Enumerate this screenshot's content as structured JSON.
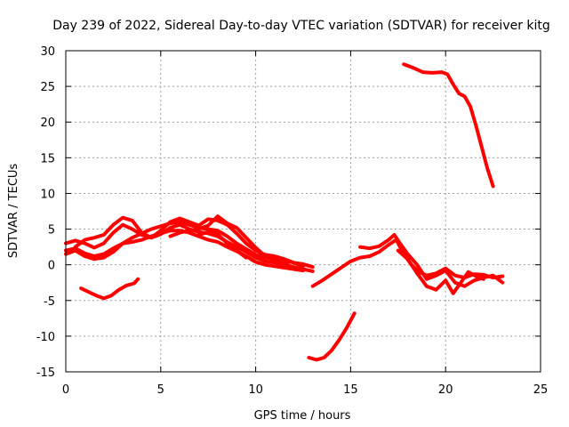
{
  "chart_data": {
    "type": "line",
    "title": "Day 239 of 2022, Sidereal Day-to-day VTEC variation (SDTVAR) for receiver kitg",
    "xlabel": "GPS time / hours",
    "ylabel": "SDTVAR / TECUs",
    "xlim": [
      0,
      25
    ],
    "ylim": [
      -15,
      30
    ],
    "xticks": [
      0,
      5,
      10,
      15,
      20,
      25
    ],
    "yticks": [
      -15,
      -10,
      -5,
      0,
      5,
      10,
      15,
      20,
      25,
      30
    ],
    "grid": true,
    "color": "#ff0000",
    "series": [
      {
        "name": "arc-1",
        "points": [
          [
            0.0,
            3.0
          ],
          [
            0.5,
            3.4
          ],
          [
            1.0,
            3.0
          ],
          [
            1.5,
            2.4
          ],
          [
            2.0,
            3.0
          ],
          [
            2.5,
            4.5
          ],
          [
            3.0,
            5.6
          ],
          [
            3.5,
            5.0
          ],
          [
            4.0,
            4.2
          ],
          [
            4.5,
            3.8
          ],
          [
            5.0,
            4.3
          ],
          [
            5.5,
            5.2
          ],
          [
            6.0,
            5.6
          ],
          [
            6.5,
            5.0
          ],
          [
            7.0,
            4.6
          ],
          [
            7.5,
            4.4
          ],
          [
            8.0,
            4.0
          ],
          [
            8.5,
            3.2
          ],
          [
            9.0,
            2.5
          ],
          [
            9.5,
            1.8
          ],
          [
            10.0,
            1.0
          ],
          [
            10.5,
            0.5
          ],
          [
            11.0,
            0.3
          ],
          [
            11.5,
            0.0
          ],
          [
            12.0,
            -0.3
          ],
          [
            12.5,
            -0.6
          ],
          [
            13.0,
            -0.9
          ]
        ]
      },
      {
        "name": "arc-2",
        "points": [
          [
            0.0,
            2.0
          ],
          [
            0.5,
            2.3
          ],
          [
            1.0,
            1.6
          ],
          [
            1.5,
            1.2
          ],
          [
            2.0,
            1.5
          ],
          [
            2.5,
            2.3
          ],
          [
            3.0,
            3.0
          ],
          [
            3.5,
            3.2
          ],
          [
            4.0,
            3.5
          ],
          [
            4.5,
            4.0
          ],
          [
            5.0,
            4.4
          ],
          [
            5.5,
            4.8
          ],
          [
            6.0,
            4.8
          ],
          [
            6.5,
            4.5
          ],
          [
            7.0,
            4.0
          ],
          [
            7.5,
            3.5
          ],
          [
            8.0,
            3.2
          ],
          [
            8.5,
            2.5
          ],
          [
            9.0,
            1.9
          ],
          [
            9.5,
            1.2
          ],
          [
            10.0,
            0.4
          ],
          [
            10.5,
            0.0
          ],
          [
            11.0,
            -0.2
          ],
          [
            11.5,
            -0.4
          ],
          [
            12.0,
            -0.6
          ],
          [
            12.5,
            -0.8
          ]
        ]
      },
      {
        "name": "arc-3",
        "points": [
          [
            0.0,
            1.5
          ],
          [
            0.5,
            2.0
          ],
          [
            1.0,
            1.2
          ],
          [
            1.5,
            0.8
          ],
          [
            2.0,
            1.0
          ],
          [
            2.5,
            1.8
          ],
          [
            3.0,
            3.0
          ],
          [
            3.5,
            3.8
          ],
          [
            4.0,
            4.4
          ],
          [
            4.5,
            5.0
          ],
          [
            5.0,
            5.4
          ],
          [
            5.5,
            5.8
          ],
          [
            6.0,
            6.0
          ],
          [
            6.5,
            5.6
          ],
          [
            7.0,
            5.2
          ],
          [
            7.5,
            5.0
          ],
          [
            8.0,
            4.8
          ],
          [
            8.5,
            4.0
          ],
          [
            9.0,
            3.0
          ],
          [
            9.5,
            2.2
          ],
          [
            10.0,
            1.4
          ],
          [
            10.5,
            1.0
          ],
          [
            11.0,
            0.8
          ],
          [
            11.5,
            0.6
          ],
          [
            12.0,
            0.3
          ],
          [
            12.5,
            0.1
          ],
          [
            13.0,
            -0.3
          ]
        ]
      },
      {
        "name": "arc-4",
        "points": [
          [
            0.5,
            2.5
          ],
          [
            1.0,
            3.5
          ],
          [
            1.5,
            3.8
          ],
          [
            2.0,
            4.2
          ],
          [
            2.5,
            5.6
          ],
          [
            3.0,
            6.6
          ],
          [
            3.5,
            6.2
          ],
          [
            4.0,
            4.5
          ],
          [
            4.5,
            3.8
          ],
          [
            5.0,
            4.8
          ],
          [
            5.5,
            6.0
          ],
          [
            6.0,
            6.5
          ],
          [
            6.5,
            6.0
          ],
          [
            7.0,
            5.5
          ],
          [
            7.5,
            6.4
          ],
          [
            8.0,
            6.2
          ],
          [
            8.5,
            5.6
          ],
          [
            9.0,
            4.4
          ],
          [
            9.5,
            3.0
          ],
          [
            10.0,
            2.0
          ],
          [
            10.5,
            1.4
          ],
          [
            11.0,
            1.2
          ],
          [
            11.5,
            0.8
          ],
          [
            12.0,
            0.3
          ],
          [
            12.5,
            -0.2
          ]
        ]
      },
      {
        "name": "arc-5",
        "points": [
          [
            5.5,
            4.0
          ],
          [
            6.0,
            4.5
          ],
          [
            6.5,
            4.8
          ],
          [
            7.0,
            5.0
          ],
          [
            7.5,
            5.5
          ],
          [
            8.0,
            6.8
          ],
          [
            8.5,
            5.8
          ],
          [
            9.0,
            5.2
          ],
          [
            9.5,
            3.8
          ],
          [
            10.0,
            2.4
          ],
          [
            10.5,
            1.2
          ],
          [
            11.0,
            0.6
          ],
          [
            11.5,
            0.2
          ],
          [
            12.0,
            -0.4
          ]
        ]
      },
      {
        "name": "arc-6",
        "points": [
          [
            7.0,
            4.2
          ],
          [
            7.5,
            4.6
          ],
          [
            8.0,
            4.3
          ],
          [
            8.5,
            3.0
          ],
          [
            9.0,
            2.0
          ],
          [
            9.5,
            1.0
          ]
        ]
      },
      {
        "name": "arc-7",
        "points": [
          [
            0.8,
            -3.3
          ],
          [
            1.2,
            -3.8
          ],
          [
            1.6,
            -4.3
          ],
          [
            2.0,
            -4.7
          ],
          [
            2.4,
            -4.3
          ],
          [
            2.8,
            -3.5
          ],
          [
            3.2,
            -2.9
          ],
          [
            3.6,
            -2.6
          ],
          [
            3.8,
            -2.0
          ]
        ]
      },
      {
        "name": "arc-8",
        "points": [
          [
            12.8,
            -13.0
          ],
          [
            13.2,
            -13.3
          ],
          [
            13.6,
            -13.0
          ],
          [
            14.0,
            -12.0
          ],
          [
            14.4,
            -10.5
          ],
          [
            14.8,
            -8.8
          ],
          [
            15.2,
            -6.8
          ]
        ]
      },
      {
        "name": "arc-9",
        "points": [
          [
            13.0,
            -3.0
          ],
          [
            13.5,
            -2.2
          ],
          [
            14.0,
            -1.3
          ],
          [
            14.5,
            -0.4
          ],
          [
            15.0,
            0.5
          ],
          [
            15.5,
            1.0
          ],
          [
            16.0,
            1.2
          ],
          [
            16.5,
            1.8
          ],
          [
            17.0,
            2.8
          ],
          [
            17.4,
            3.5
          ],
          [
            17.8,
            1.5
          ],
          [
            18.2,
            0.0
          ],
          [
            18.6,
            -1.0
          ],
          [
            19.0,
            -1.5
          ],
          [
            19.5,
            -1.2
          ],
          [
            20.0,
            -0.5
          ],
          [
            20.5,
            -1.5
          ],
          [
            21.0,
            -1.8
          ],
          [
            21.5,
            -1.3
          ],
          [
            22.0,
            -1.4
          ],
          [
            22.5,
            -1.8
          ],
          [
            23.0,
            -1.6
          ]
        ]
      },
      {
        "name": "arc-10",
        "points": [
          [
            15.5,
            2.5
          ],
          [
            16.0,
            2.3
          ],
          [
            16.5,
            2.6
          ],
          [
            17.0,
            3.5
          ],
          [
            17.3,
            4.2
          ],
          [
            17.6,
            3.0
          ],
          [
            18.0,
            1.5
          ],
          [
            18.5,
            0.0
          ],
          [
            19.0,
            -2.0
          ],
          [
            19.5,
            -1.5
          ],
          [
            20.0,
            -0.8
          ],
          [
            20.5,
            -2.5
          ],
          [
            21.0,
            -3.0
          ],
          [
            21.5,
            -2.2
          ],
          [
            22.0,
            -1.8
          ],
          [
            22.5,
            -1.5
          ],
          [
            23.0,
            -2.5
          ]
        ]
      },
      {
        "name": "arc-11",
        "points": [
          [
            17.5,
            2.0
          ],
          [
            18.0,
            0.8
          ],
          [
            18.5,
            -1.2
          ],
          [
            19.0,
            -3.0
          ],
          [
            19.5,
            -3.5
          ],
          [
            20.0,
            -2.2
          ],
          [
            20.4,
            -4.0
          ],
          [
            20.8,
            -2.5
          ],
          [
            21.2,
            -1.0
          ],
          [
            21.6,
            -1.6
          ],
          [
            22.0,
            -2.0
          ]
        ]
      },
      {
        "name": "arc-12",
        "points": [
          [
            17.8,
            28.1
          ],
          [
            18.3,
            27.6
          ],
          [
            18.8,
            27.0
          ],
          [
            19.3,
            26.9
          ],
          [
            19.8,
            27.0
          ],
          [
            20.1,
            26.7
          ],
          [
            20.4,
            25.3
          ],
          [
            20.7,
            24.0
          ],
          [
            21.0,
            23.6
          ],
          [
            21.3,
            22.2
          ],
          [
            21.6,
            19.5
          ],
          [
            21.9,
            16.5
          ],
          [
            22.2,
            13.5
          ],
          [
            22.5,
            11.0
          ]
        ]
      }
    ]
  }
}
